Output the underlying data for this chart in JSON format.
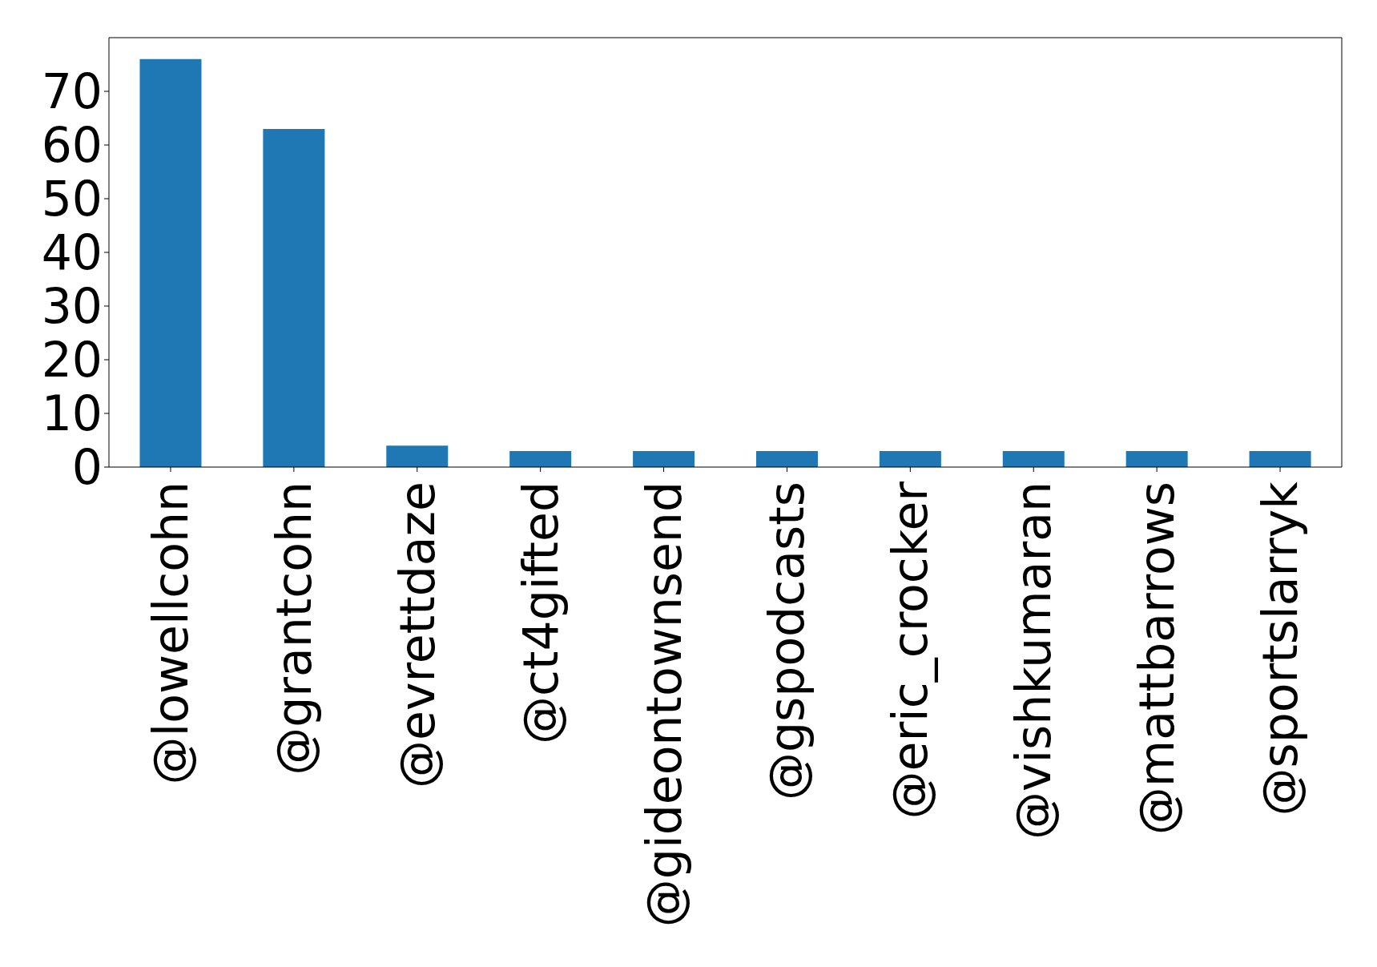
{
  "chart_data": {
    "type": "bar",
    "categories": [
      "@lowellcohn",
      "@grantcohn",
      "@evrettdaze",
      "@ct4gifted",
      "@gideontownsend",
      "@gspodcasts",
      "@eric_crocker",
      "@vishkumaran",
      "@mattbarrows",
      "@sportslarryk"
    ],
    "values": [
      76,
      63,
      4,
      3,
      3,
      3,
      3,
      3,
      3,
      3
    ],
    "color": "#1f77b4",
    "ylim": [
      0,
      80
    ],
    "yticks": [
      0,
      10,
      20,
      30,
      40,
      50,
      60,
      70
    ],
    "grid": false
  }
}
